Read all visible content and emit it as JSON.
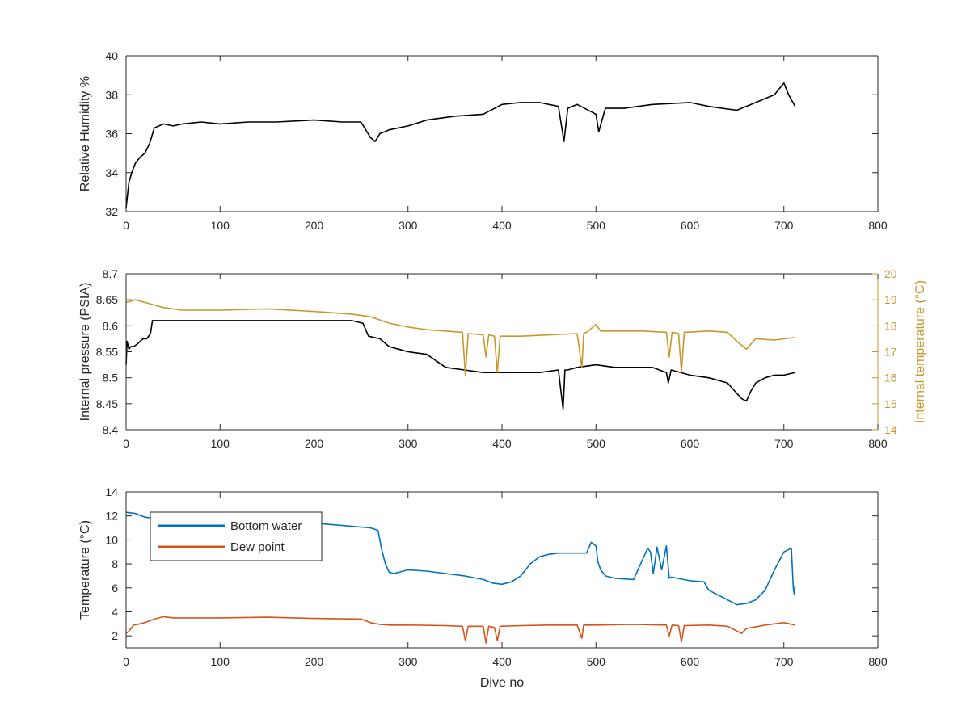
{
  "chart_data": [
    {
      "type": "line",
      "xlabel": "",
      "ylabel": "Relative Humidity %",
      "xlim": [
        0,
        800
      ],
      "ylim": [
        32,
        40
      ],
      "xticks": [
        0,
        100,
        200,
        300,
        400,
        500,
        600,
        700,
        800
      ],
      "yticks": [
        32,
        34,
        36,
        38,
        40
      ],
      "grid": false,
      "series": [
        {
          "color": "#000000",
          "axis": "left",
          "x": [
            0,
            3,
            6,
            10,
            15,
            20,
            25,
            30,
            40,
            50,
            60,
            80,
            100,
            130,
            160,
            200,
            230,
            250,
            260,
            265,
            270,
            280,
            300,
            320,
            350,
            380,
            400,
            420,
            440,
            460,
            466,
            470,
            480,
            500,
            503,
            510,
            530,
            560,
            600,
            620,
            650,
            670,
            690,
            700,
            705,
            712
          ],
          "y": [
            32.2,
            33.5,
            34.0,
            34.5,
            34.8,
            35.0,
            35.5,
            36.3,
            36.5,
            36.4,
            36.5,
            36.6,
            36.5,
            36.6,
            36.6,
            36.7,
            36.6,
            36.6,
            35.8,
            35.6,
            36.0,
            36.2,
            36.4,
            36.7,
            36.9,
            37.0,
            37.5,
            37.6,
            37.6,
            37.4,
            35.6,
            37.3,
            37.5,
            37.0,
            36.1,
            37.3,
            37.3,
            37.5,
            37.6,
            37.4,
            37.2,
            37.6,
            38.0,
            38.6,
            38.0,
            37.4
          ]
        }
      ]
    },
    {
      "type": "line",
      "xlabel": "",
      "ylabel": "Internal pressure (PSIA)",
      "y2label": "Internal temperature (°C)",
      "xlim": [
        0,
        800
      ],
      "ylim": [
        8.4,
        8.7
      ],
      "y2lim": [
        14,
        20
      ],
      "xticks": [
        0,
        100,
        200,
        300,
        400,
        500,
        600,
        700,
        800
      ],
      "yticks": [
        8.4,
        8.45,
        8.5,
        8.55,
        8.6,
        8.65,
        8.7
      ],
      "y2ticks": [
        14,
        15,
        16,
        17,
        18,
        19,
        20
      ],
      "grid": false,
      "series": [
        {
          "color": "#000000",
          "axis": "left",
          "x": [
            0,
            1,
            3,
            5,
            8,
            12,
            18,
            22,
            26,
            28,
            30,
            35,
            40,
            60,
            100,
            150,
            200,
            240,
            252,
            258,
            270,
            280,
            290,
            300,
            320,
            340,
            360,
            380,
            400,
            420,
            440,
            460,
            465,
            467,
            470,
            480,
            500,
            520,
            540,
            560,
            575,
            577,
            580,
            600,
            620,
            640,
            650,
            655,
            660,
            665,
            670,
            680,
            690,
            700,
            712
          ],
          "y": [
            8.525,
            8.57,
            8.555,
            8.56,
            8.56,
            8.565,
            8.575,
            8.575,
            8.585,
            8.61,
            8.61,
            8.61,
            8.61,
            8.61,
            8.61,
            8.61,
            8.61,
            8.61,
            8.605,
            8.58,
            8.575,
            8.56,
            8.555,
            8.55,
            8.545,
            8.52,
            8.515,
            8.51,
            8.51,
            8.51,
            8.51,
            8.515,
            8.44,
            8.515,
            8.515,
            8.52,
            8.525,
            8.52,
            8.52,
            8.52,
            8.51,
            8.49,
            8.515,
            8.505,
            8.5,
            8.49,
            8.47,
            8.46,
            8.455,
            8.475,
            8.49,
            8.5,
            8.505,
            8.505,
            8.51
          ]
        },
        {
          "color": "#C9982C",
          "axis": "right",
          "x": [
            0,
            10,
            20,
            40,
            60,
            100,
            150,
            200,
            240,
            260,
            280,
            300,
            320,
            340,
            358,
            361,
            364,
            380,
            383,
            386,
            392,
            395,
            398,
            420,
            450,
            480,
            485,
            487,
            490,
            500,
            505,
            520,
            550,
            575,
            578,
            581,
            588,
            591,
            594,
            620,
            640,
            650,
            660,
            670,
            690,
            712
          ],
          "y": [
            18.9,
            19.0,
            18.9,
            18.7,
            18.6,
            18.6,
            18.65,
            18.55,
            18.45,
            18.35,
            18.1,
            17.95,
            17.85,
            17.8,
            17.75,
            16.1,
            17.7,
            17.65,
            16.8,
            17.65,
            17.6,
            16.2,
            17.6,
            17.6,
            17.65,
            17.7,
            16.4,
            17.7,
            17.75,
            18.05,
            17.8,
            17.8,
            17.8,
            17.75,
            16.8,
            17.75,
            17.7,
            16.2,
            17.75,
            17.8,
            17.75,
            17.4,
            17.1,
            17.5,
            17.45,
            17.55
          ]
        }
      ]
    },
    {
      "type": "line",
      "xlabel": "Dive no",
      "ylabel": "Temperature (°C)",
      "xlim": [
        0,
        800
      ],
      "ylim": [
        1,
        14
      ],
      "xticks": [
        0,
        100,
        200,
        300,
        400,
        500,
        600,
        700,
        800
      ],
      "yticks": [
        2,
        4,
        6,
        8,
        10,
        12,
        14
      ],
      "grid": false,
      "legend_position": "top-left",
      "series": [
        {
          "name": "Bottom water",
          "color": "#0072BD",
          "x": [
            0,
            10,
            20,
            30,
            40,
            60,
            100,
            150,
            200,
            230,
            260,
            268,
            272,
            276,
            280,
            285,
            300,
            320,
            340,
            360,
            380,
            390,
            400,
            410,
            420,
            430,
            440,
            450,
            460,
            470,
            490,
            495,
            500,
            502,
            505,
            510,
            520,
            540,
            555,
            558,
            561,
            565,
            570,
            575,
            578,
            580,
            600,
            615,
            620,
            640,
            650,
            660,
            670,
            680,
            690,
            700,
            708,
            710,
            711,
            712
          ],
          "y": [
            12.3,
            12.2,
            11.9,
            11.8,
            11.6,
            11.5,
            11.4,
            11.3,
            11.4,
            11.2,
            11.0,
            10.8,
            9.2,
            8.0,
            7.3,
            7.2,
            7.5,
            7.4,
            7.2,
            7.0,
            6.7,
            6.4,
            6.3,
            6.5,
            7.0,
            8.0,
            8.6,
            8.8,
            8.9,
            8.9,
            8.9,
            9.8,
            9.5,
            8.2,
            7.5,
            7.0,
            6.8,
            6.7,
            9.3,
            9.0,
            7.2,
            9.4,
            7.5,
            9.5,
            6.8,
            6.9,
            6.6,
            6.5,
            5.8,
            5.0,
            4.6,
            4.7,
            5.0,
            5.8,
            7.5,
            9.0,
            9.3,
            6.0,
            5.5,
            6.2
          ]
        },
        {
          "name": "Dew point",
          "color": "#D95319",
          "x": [
            0,
            3,
            8,
            15,
            20,
            30,
            40,
            50,
            80,
            100,
            150,
            200,
            250,
            260,
            270,
            280,
            300,
            340,
            358,
            361,
            364,
            380,
            383,
            386,
            392,
            395,
            398,
            420,
            450,
            480,
            485,
            487,
            490,
            500,
            540,
            575,
            578,
            581,
            588,
            591,
            594,
            620,
            640,
            650,
            655,
            660,
            680,
            700,
            712
          ],
          "y": [
            2.2,
            2.4,
            2.9,
            3.0,
            3.1,
            3.4,
            3.6,
            3.5,
            3.5,
            3.5,
            3.55,
            3.45,
            3.4,
            3.1,
            2.95,
            2.9,
            2.9,
            2.85,
            2.8,
            1.6,
            2.8,
            2.8,
            1.4,
            2.8,
            2.7,
            1.6,
            2.8,
            2.85,
            2.9,
            2.9,
            1.8,
            2.9,
            2.9,
            2.9,
            2.95,
            2.9,
            2.0,
            2.9,
            2.85,
            1.5,
            2.85,
            2.9,
            2.8,
            2.4,
            2.2,
            2.6,
            2.9,
            3.1,
            2.9
          ]
        }
      ]
    }
  ]
}
